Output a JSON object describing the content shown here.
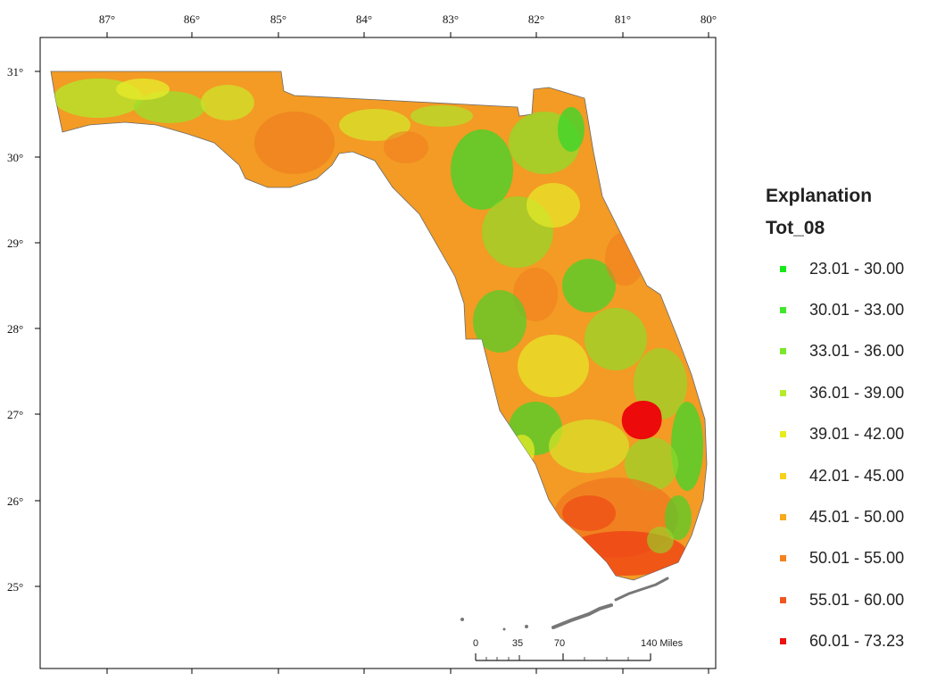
{
  "map": {
    "longitude_labels": [
      "87°",
      "86°",
      "85°",
      "84°",
      "83°",
      "82°",
      "81°",
      "80°"
    ],
    "latitude_labels": [
      "31°",
      "30°",
      "29°",
      "28°",
      "27°",
      "26°",
      "25°"
    ],
    "scale_bar": {
      "labels": [
        "0",
        "35",
        "70",
        "140 Miles"
      ]
    },
    "region_colors": {
      "land_base": "#f39b24",
      "green_mid": "#8fdc2a",
      "green_bright": "#3fd62a",
      "yellow": "#e6ea2a",
      "orange": "#f07a1f",
      "hotspot": "#ec0a0a",
      "keys": "#777777"
    }
  },
  "legend": {
    "title": "Explanation",
    "field": "Tot_08",
    "items": [
      {
        "label": "23.01 - 30.00",
        "color": "#17e817"
      },
      {
        "label": "30.01 - 33.00",
        "color": "#3fe82a"
      },
      {
        "label": "33.01 - 36.00",
        "color": "#7ae82a"
      },
      {
        "label": "36.01 - 39.00",
        "color": "#b5ec2a"
      },
      {
        "label": "39.01 - 42.00",
        "color": "#e8ec1a"
      },
      {
        "label": "42.01 - 45.00",
        "color": "#f8d21a"
      },
      {
        "label": "45.01 - 50.00",
        "color": "#f8aa1a"
      },
      {
        "label": "50.01 - 55.00",
        "color": "#f5821f"
      },
      {
        "label": "55.01 - 60.00",
        "color": "#f0561f"
      },
      {
        "label": "60.01 - 73.23",
        "color": "#ee1111"
      }
    ]
  }
}
